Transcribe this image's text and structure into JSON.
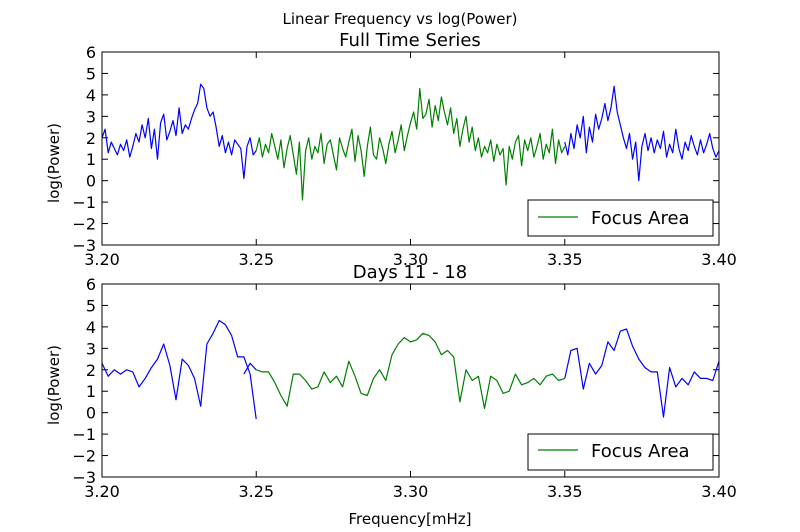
{
  "figure": {
    "suptitle": "Linear Frequency vs log(Power)"
  },
  "chart_data": [
    {
      "type": "line",
      "title": "Full Time Series",
      "xlabel": "",
      "ylabel": "log(Power)",
      "xlim": [
        3.2,
        3.4
      ],
      "ylim": [
        -3,
        6
      ],
      "xticks": [
        "3.20",
        "3.25",
        "3.30",
        "3.35",
        "3.40"
      ],
      "yticks": [
        "−3",
        "−2",
        "−1",
        "0",
        "1",
        "2",
        "3",
        "4",
        "5",
        "6"
      ],
      "legend": {
        "position": "lower-right",
        "entries": [
          "Focus Area"
        ]
      },
      "series": [
        {
          "name": "",
          "color": "#0000ff",
          "segments": [
            {
              "x": [
                3.2,
                3.201,
                3.202,
                3.203,
                3.204,
                3.205,
                3.206,
                3.207,
                3.208,
                3.209,
                3.21,
                3.211,
                3.212,
                3.213,
                3.214,
                3.215,
                3.216,
                3.217,
                3.218,
                3.219,
                3.22,
                3.221,
                3.222,
                3.223,
                3.224,
                3.225,
                3.226,
                3.227,
                3.228,
                3.229,
                3.23,
                3.231,
                3.232,
                3.233,
                3.234,
                3.235,
                3.236,
                3.237,
                3.238,
                3.239,
                3.24,
                3.241,
                3.242,
                3.243,
                3.244,
                3.245,
                3.246,
                3.247,
                3.248,
                3.249,
                3.25
              ],
              "y": [
                2.0,
                2.4,
                1.3,
                1.8,
                1.5,
                1.2,
                1.7,
                1.4,
                1.9,
                1.1,
                1.6,
                2.2,
                1.8,
                2.6,
                2.0,
                2.9,
                1.5,
                2.4,
                1.0,
                2.7,
                3.1,
                1.9,
                2.3,
                2.8,
                2.1,
                3.4,
                2.2,
                2.6,
                2.4,
                2.9,
                3.3,
                3.6,
                4.5,
                4.3,
                3.4,
                3.0,
                3.2,
                2.5,
                1.6,
                2.1,
                1.3,
                1.8,
                1.2,
                1.9,
                1.7,
                1.5,
                0.1,
                1.6,
                2.0,
                1.2,
                1.4
              ]
            },
            {
              "x": [
                3.35,
                3.351,
                3.352,
                3.353,
                3.354,
                3.355,
                3.356,
                3.357,
                3.358,
                3.359,
                3.36,
                3.361,
                3.362,
                3.363,
                3.364,
                3.365,
                3.366,
                3.367,
                3.368,
                3.369,
                3.37,
                3.371,
                3.372,
                3.373,
                3.374,
                3.375,
                3.376,
                3.377,
                3.378,
                3.379,
                3.38,
                3.381,
                3.382,
                3.383,
                3.384,
                3.385,
                3.386,
                3.387,
                3.388,
                3.389,
                3.39,
                3.391,
                3.392,
                3.393,
                3.394,
                3.395,
                3.396,
                3.397,
                3.398,
                3.399,
                3.4
              ],
              "y": [
                1.8,
                1.2,
                2.2,
                1.5,
                2.6,
                2.0,
                3.0,
                1.3,
                2.5,
                1.8,
                3.1,
                2.4,
                2.9,
                3.6,
                2.8,
                3.4,
                4.4,
                3.2,
                2.6,
                2.0,
                1.5,
                2.2,
                1.0,
                1.8,
                0.0,
                1.6,
                2.2,
                1.4,
                2.0,
                1.3,
                1.9,
                1.5,
                2.3,
                1.1,
                1.7,
                1.3,
                2.4,
                1.5,
                1.0,
                1.8,
                1.4,
                2.1,
                1.6,
                1.2,
                1.9,
                1.3,
                1.7,
                2.2,
                1.5,
                1.1,
                1.4
              ]
            }
          ]
        },
        {
          "name": "Focus Area",
          "color": "#007f00",
          "segments": [
            {
              "x": [
                3.25,
                3.251,
                3.252,
                3.253,
                3.254,
                3.255,
                3.256,
                3.257,
                3.258,
                3.259,
                3.26,
                3.261,
                3.262,
                3.263,
                3.264,
                3.265,
                3.266,
                3.267,
                3.268,
                3.269,
                3.27,
                3.271,
                3.272,
                3.273,
                3.274,
                3.275,
                3.276,
                3.277,
                3.278,
                3.279,
                3.28,
                3.281,
                3.282,
                3.283,
                3.284,
                3.285,
                3.286,
                3.287,
                3.288,
                3.289,
                3.29,
                3.291,
                3.292,
                3.293,
                3.294,
                3.295,
                3.296,
                3.297,
                3.298,
                3.299,
                3.3,
                3.301,
                3.302,
                3.303,
                3.304,
                3.305,
                3.306,
                3.307,
                3.308,
                3.309,
                3.31,
                3.311,
                3.312,
                3.313,
                3.314,
                3.315,
                3.316,
                3.317,
                3.318,
                3.319,
                3.32,
                3.321,
                3.322,
                3.323,
                3.324,
                3.325,
                3.326,
                3.327,
                3.328,
                3.329,
                3.33,
                3.331,
                3.332,
                3.333,
                3.334,
                3.335,
                3.336,
                3.337,
                3.338,
                3.339,
                3.34,
                3.341,
                3.342,
                3.343,
                3.344,
                3.345,
                3.346,
                3.347,
                3.348,
                3.349,
                3.35
              ],
              "y": [
                1.4,
                2.0,
                1.1,
                1.7,
                1.3,
                2.2,
                1.6,
                1.0,
                1.9,
                0.6,
                1.5,
                2.1,
                1.2,
                0.3,
                1.8,
                -0.9,
                1.4,
                2.0,
                1.0,
                1.6,
                1.3,
                2.2,
                0.8,
                1.7,
                1.9,
                1.2,
                0.5,
                2.0,
                1.5,
                1.1,
                1.8,
                2.4,
                0.9,
                2.1,
                1.4,
                0.2,
                1.6,
                2.5,
                1.2,
                1.0,
                2.0,
                1.5,
                0.8,
                1.7,
                2.3,
                1.3,
                1.9,
                2.6,
                1.4,
                2.1,
                2.7,
                3.2,
                2.4,
                4.3,
                2.9,
                3.1,
                3.8,
                2.5,
                3.5,
                2.8,
                3.9,
                3.2,
                2.6,
                3.4,
                2.2,
                2.9,
                1.6,
                2.4,
                3.0,
                1.8,
                2.5,
                1.4,
                2.0,
                1.1,
                1.6,
                1.3,
                1.9,
                0.9,
                1.7,
                1.2,
                1.5,
                -0.2,
                1.6,
                1.0,
                1.8,
                2.1,
                0.7,
                1.9,
                1.4,
                2.0,
                1.1,
                1.6,
                2.2,
                1.0,
                1.7,
                1.3,
                2.4,
                0.8,
                1.9,
                1.3,
                1.6
              ]
            }
          ]
        }
      ]
    },
    {
      "type": "line",
      "title": "Days 11 - 18",
      "xlabel": "Frequency[mHz]",
      "ylabel": "log(Power)",
      "xlim": [
        3.2,
        3.4
      ],
      "ylim": [
        -3,
        6
      ],
      "xticks": [
        "3.20",
        "3.25",
        "3.30",
        "3.35",
        "3.40"
      ],
      "yticks": [
        "−3",
        "−2",
        "−1",
        "0",
        "1",
        "2",
        "3",
        "4",
        "5",
        "6"
      ],
      "legend": {
        "position": "lower-right",
        "entries": [
          "Focus Area"
        ]
      },
      "series": [
        {
          "name": "",
          "color": "#0000ff",
          "segments": [
            {
              "x": [
                3.2,
                3.202,
                3.204,
                3.206,
                3.208,
                3.21,
                3.212,
                3.214,
                3.216,
                3.218,
                3.22,
                3.222,
                3.224,
                3.226,
                3.228,
                3.23,
                3.232,
                3.234,
                3.236,
                3.238,
                3.24,
                3.242,
                3.244,
                3.246,
                3.248,
                3.25
              ],
              "y": [
                2.3,
                1.7,
                2.0,
                1.8,
                2.0,
                1.9,
                1.2,
                1.6,
                2.1,
                2.5,
                3.2,
                2.2,
                0.6,
                2.5,
                2.2,
                1.6,
                0.3,
                3.2,
                3.7,
                4.3,
                4.1,
                3.6,
                2.6,
                2.6,
                1.8,
                -0.3
              ]
            },
            {
              "x": [
                3.246,
                3.248,
                3.25
              ],
              "y": [
                1.8,
                2.3,
                2.0
              ]
            },
            {
              "x": [
                3.35,
                3.352,
                3.354,
                3.356,
                3.358,
                3.36,
                3.362,
                3.364,
                3.366,
                3.368,
                3.37,
                3.372,
                3.374,
                3.376,
                3.378,
                3.38,
                3.382,
                3.384,
                3.386,
                3.388,
                3.39,
                3.392,
                3.394,
                3.396,
                3.398,
                3.4
              ],
              "y": [
                1.6,
                2.9,
                3.0,
                1.1,
                2.3,
                1.8,
                2.2,
                3.3,
                2.9,
                3.8,
                3.9,
                3.1,
                2.5,
                2.1,
                1.9,
                1.9,
                -0.2,
                2.1,
                1.2,
                1.6,
                1.3,
                1.9,
                1.6,
                1.6,
                1.5,
                2.4
              ]
            }
          ]
        },
        {
          "name": "Focus Area",
          "color": "#007f00",
          "segments": [
            {
              "x": [
                3.25,
                3.252,
                3.254,
                3.256,
                3.258,
                3.26,
                3.262,
                3.264,
                3.266,
                3.268,
                3.27,
                3.272,
                3.274,
                3.276,
                3.278,
                3.28,
                3.282,
                3.284,
                3.286,
                3.288,
                3.29,
                3.292,
                3.294,
                3.296,
                3.298,
                3.3,
                3.302,
                3.304,
                3.306,
                3.308,
                3.31,
                3.312,
                3.314,
                3.316,
                3.318,
                3.32,
                3.322,
                3.324,
                3.326,
                3.328,
                3.33,
                3.332,
                3.334,
                3.336,
                3.338,
                3.34,
                3.342,
                3.344,
                3.346,
                3.348,
                3.35
              ],
              "y": [
                2.0,
                1.9,
                1.9,
                1.4,
                0.8,
                0.3,
                1.8,
                1.8,
                1.5,
                1.1,
                1.2,
                1.9,
                1.4,
                1.7,
                1.2,
                2.4,
                1.7,
                0.9,
                0.8,
                1.6,
                2.0,
                1.5,
                2.7,
                3.2,
                3.5,
                3.3,
                3.4,
                3.7,
                3.6,
                3.3,
                2.7,
                2.9,
                2.6,
                0.5,
                2.0,
                1.5,
                1.7,
                0.2,
                1.7,
                1.5,
                0.9,
                1.0,
                1.8,
                1.3,
                1.4,
                1.6,
                1.3,
                1.7,
                1.8,
                1.5,
                1.6
              ]
            }
          ]
        }
      ]
    }
  ]
}
